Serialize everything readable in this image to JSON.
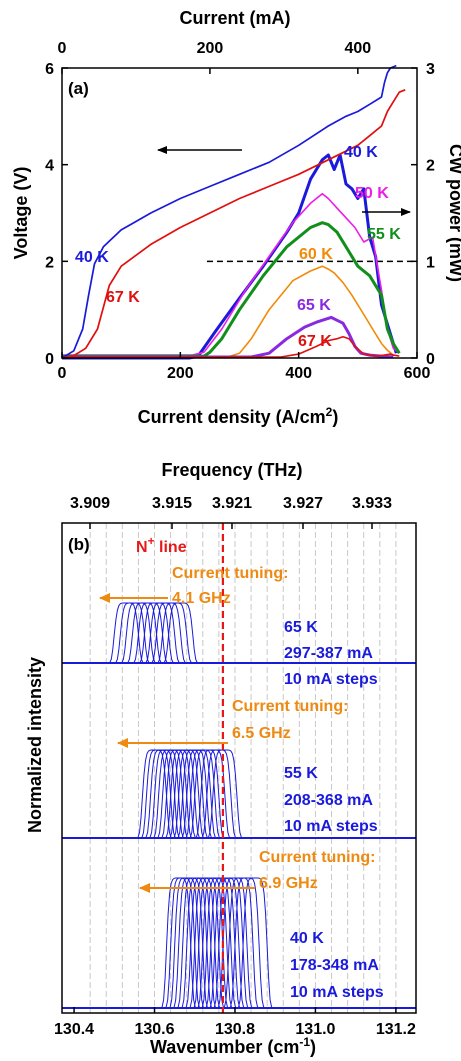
{
  "chart_data": [
    {
      "panel": "(a)",
      "type": "line",
      "top_axis": {
        "label": "Current (mA)",
        "ticks": [
          "0",
          "200",
          "400"
        ],
        "values": [
          0,
          200,
          400
        ],
        "range": [
          0,
          480
        ]
      },
      "x_axis": {
        "label_main": "Current density  (A/cm",
        "label_sup": "2",
        "label_end": ")",
        "ticks": [
          "0",
          "200",
          "400",
          "600"
        ],
        "values": [
          0,
          200,
          400,
          600
        ],
        "range": [
          0,
          600
        ]
      },
      "y_left": {
        "label": "Voltage (V)",
        "ticks": [
          "0",
          "2",
          "4",
          "6"
        ],
        "values": [
          0,
          2,
          4,
          6
        ],
        "range": [
          0,
          6
        ]
      },
      "y_right": {
        "label": "CW power (mW)",
        "ticks": [
          "0",
          "1",
          "2",
          "3"
        ],
        "values": [
          0,
          1,
          2,
          3
        ],
        "range": [
          0,
          3
        ]
      },
      "reference_line": {
        "axis": "right",
        "value": 1.0
      },
      "series_voltage": [
        {
          "name": "40 K",
          "color": "#1a1adc",
          "x": [
            0,
            20,
            35,
            45,
            55,
            70,
            100,
            150,
            200,
            250,
            300,
            350,
            400,
            450,
            480,
            500,
            520,
            540,
            545,
            550,
            555,
            565
          ],
          "y": [
            0,
            0.15,
            0.6,
            1.3,
            1.95,
            2.3,
            2.65,
            3.0,
            3.3,
            3.55,
            3.8,
            4.05,
            4.4,
            4.8,
            5.0,
            5.1,
            5.25,
            5.4,
            5.7,
            5.9,
            6.0,
            6.05
          ]
        },
        {
          "name": "67 K",
          "color": "#e01010",
          "x": [
            0,
            20,
            40,
            60,
            80,
            100,
            150,
            200,
            250,
            300,
            350,
            400,
            450,
            500,
            520,
            540,
            550,
            560,
            570,
            580
          ],
          "y": [
            0,
            0.05,
            0.2,
            0.6,
            1.5,
            1.9,
            2.35,
            2.7,
            3.0,
            3.3,
            3.55,
            3.8,
            4.1,
            4.4,
            4.6,
            4.8,
            5.1,
            5.3,
            5.5,
            5.55
          ]
        }
      ],
      "series_power": [
        {
          "name": "40 K",
          "color": "#1a1adc",
          "bold": true,
          "x": [
            0,
            200,
            215,
            230,
            260,
            300,
            340,
            380,
            400,
            420,
            440,
            450,
            460,
            470,
            480,
            490,
            500,
            510,
            520,
            530,
            540,
            550,
            560,
            565
          ],
          "y": [
            0,
            0,
            0,
            0.02,
            0.28,
            0.62,
            0.95,
            1.3,
            1.5,
            1.85,
            2.05,
            2.1,
            1.95,
            2.1,
            1.8,
            1.75,
            1.65,
            1.75,
            1.25,
            1.05,
            0.55,
            0.35,
            0.15,
            0.05
          ]
        },
        {
          "name": "50 K",
          "color": "#ee1ce6",
          "x": [
            0,
            220,
            240,
            270,
            310,
            350,
            390,
            420,
            440,
            450,
            465,
            480,
            495,
            510,
            525,
            540,
            550,
            560,
            570
          ],
          "y": [
            0.03,
            0.03,
            0.06,
            0.3,
            0.7,
            1.05,
            1.4,
            1.6,
            1.7,
            1.65,
            1.55,
            1.45,
            1.35,
            1.2,
            1.25,
            0.7,
            0.3,
            0.1,
            0.05
          ]
        },
        {
          "name": "55 K",
          "color": "#10901a",
          "bold": true,
          "x": [
            0,
            240,
            250,
            270,
            300,
            340,
            380,
            420,
            440,
            450,
            465,
            480,
            500,
            520,
            540,
            550,
            560,
            570
          ],
          "y": [
            0.02,
            0.02,
            0.06,
            0.2,
            0.5,
            0.85,
            1.15,
            1.35,
            1.4,
            1.38,
            1.3,
            1.15,
            0.95,
            0.85,
            0.65,
            0.3,
            0.15,
            0.05
          ]
        },
        {
          "name": "60 K",
          "color": "#f28a08",
          "x": [
            0,
            280,
            300,
            320,
            350,
            390,
            420,
            440,
            450,
            460,
            475,
            490,
            510,
            525,
            540,
            550,
            560
          ],
          "y": [
            0.01,
            0.01,
            0.05,
            0.2,
            0.5,
            0.8,
            0.9,
            0.95,
            0.92,
            0.88,
            0.78,
            0.65,
            0.45,
            0.3,
            0.15,
            0.08,
            0.03
          ]
        },
        {
          "name": "65 K",
          "color": "#8a2ae0",
          "bold": true,
          "x": [
            0,
            320,
            350,
            380,
            410,
            430,
            445,
            455,
            465,
            475,
            485,
            495,
            505,
            520,
            540,
            560
          ],
          "y": [
            0.01,
            0.01,
            0.05,
            0.2,
            0.32,
            0.37,
            0.4,
            0.42,
            0.39,
            0.36,
            0.25,
            0.12,
            0.05,
            0.03,
            0.02,
            0.01
          ]
        },
        {
          "name": "67 K",
          "color": "#e01010",
          "x": [
            0,
            370,
            400,
            430,
            450,
            465,
            475,
            485,
            495,
            510,
            530,
            545,
            555,
            560,
            570
          ],
          "y": [
            0.01,
            0.01,
            0.04,
            0.12,
            0.18,
            0.2,
            0.22,
            0.2,
            0.12,
            0.04,
            0.02,
            0.03,
            0.04,
            0.03,
            0.02
          ]
        }
      ],
      "labels": {
        "v40": "40 K",
        "v67": "67 K",
        "p40": "40 K",
        "p50": "50 K",
        "p55": "55 K",
        "p60": "60 K",
        "p65": "65 K",
        "p67": "67 K"
      }
    },
    {
      "panel": "(b)",
      "type": "line",
      "top_axis": {
        "label": "Frequency (THz)",
        "ticks": [
          "3.909",
          "3.915",
          "3.921",
          "3.927",
          "3.933"
        ],
        "values": [
          3.909,
          3.915,
          3.921,
          3.927,
          3.933
        ]
      },
      "x_axis": {
        "label_main": "Wavenumber  (cm",
        "label_sup": "-1",
        "label_end": ")",
        "ticks": [
          "130.4",
          "130.6",
          "130.8",
          "131.0",
          "131.2"
        ],
        "values": [
          130.4,
          130.6,
          130.8,
          131.0,
          131.2
        ],
        "range": [
          130.37,
          131.25
        ]
      },
      "y_axis": {
        "label": "Normalized intensity"
      },
      "reference_line": {
        "label_main": "N",
        "label_sup": "+",
        "label_end": " line",
        "x": 130.77,
        "color": "#e81818"
      },
      "grid_x": [
        130.44,
        130.48,
        130.52,
        130.56,
        130.6,
        130.64,
        130.68,
        130.72,
        130.76,
        130.8,
        130.84,
        130.88,
        130.92,
        130.96,
        131.0,
        131.04,
        131.08,
        131.12,
        131.16,
        131.2
      ],
      "groups": [
        {
          "temperature": "65 K",
          "current_range": "297-387 mA",
          "step": "10 mA steps",
          "tuning_label": "Current tuning:",
          "tuning_value": "4.1 GHz",
          "centers": [
            130.53,
            130.545,
            130.56,
            130.575,
            130.59,
            130.605,
            130.62,
            130.635,
            130.65,
            130.665
          ]
        },
        {
          "temperature": "55 K",
          "current_range": "208-368 mA",
          "step": "10 mA steps",
          "tuning_label": "Current tuning:",
          "tuning_value": "6.5 GHz",
          "centers": [
            130.6,
            130.61,
            130.62,
            130.63,
            130.64,
            130.65,
            130.66,
            130.67,
            130.68,
            130.69,
            130.7,
            130.71,
            130.72,
            130.73,
            130.745,
            130.76,
            130.775
          ]
        },
        {
          "temperature": "40 K",
          "current_range": "178-348 mA",
          "step": "10 mA steps",
          "tuning_label": "Current tuning:",
          "tuning_value": "6.9 GHz",
          "centers": [
            130.66,
            130.67,
            130.68,
            130.69,
            130.7,
            130.71,
            130.72,
            130.73,
            130.74,
            130.75,
            130.76,
            130.77,
            130.78,
            130.79,
            130.8,
            130.815,
            130.83,
            130.85
          ]
        }
      ],
      "colors": {
        "spectra": "#1a1adc",
        "arrow": "#ee8a12",
        "grid": "#c8c8c8"
      }
    }
  ]
}
